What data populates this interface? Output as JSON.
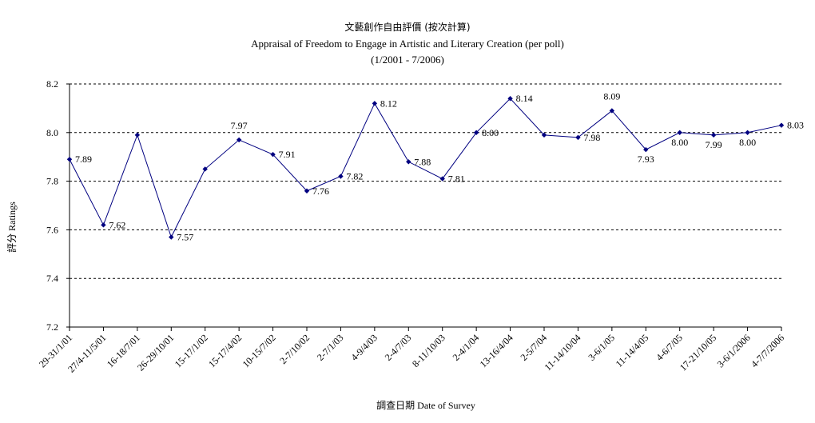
{
  "chart_data": {
    "type": "line",
    "title": "文藝創作自由評價 (按次計算)",
    "subtitle": "Appraisal of Freedom to Engage in Artistic and Literary Creation (per poll)",
    "period": "(1/2001 - 7/2006)",
    "xlabel": "調查日期 Date of Survey",
    "ylabel": "評分 Ratings",
    "ylim": [
      7.2,
      8.2
    ],
    "yticks": [
      "7.2",
      "7.4",
      "7.6",
      "7.8",
      "8.0",
      "8.2"
    ],
    "grid": true,
    "categories": [
      "29-31/1/01",
      "27/4-11/5/01",
      "16-18/7/01",
      "26-29/10/01",
      "15-17/1/02",
      "15-17/4/02",
      "10-15/7/02",
      "2-7/10/02",
      "2-7/1/03",
      "4-9/4/03",
      "2-4/7/03",
      "8-11/10/03",
      "2-4/1/04",
      "13-16/4/04",
      "2-5/7/04",
      "11-14/10/04",
      "3-6/1/05",
      "11-14/4/05",
      "4-6/7/05",
      "17-21/10/05",
      "3-6/1/2006",
      "4-7/7/2006"
    ],
    "values": [
      7.89,
      7.62,
      7.99,
      7.57,
      7.85,
      7.97,
      7.91,
      7.76,
      7.82,
      8.12,
      7.88,
      7.81,
      8.0,
      8.14,
      7.99,
      7.98,
      8.09,
      7.93,
      8.0,
      7.99,
      8.0,
      8.03
    ],
    "labels": [
      "7.89",
      "7.62",
      "",
      "7.57",
      "",
      "7.97",
      "7.91",
      "7.76",
      "7.82",
      "8.12",
      "7.88",
      "7.81",
      "8.00",
      "8.14",
      "",
      "7.98",
      "8.09",
      "7.93",
      "8.00",
      "7.99",
      "8.00",
      "8.03"
    ],
    "colors": {
      "line": "#000080",
      "grid": "#000000"
    }
  }
}
